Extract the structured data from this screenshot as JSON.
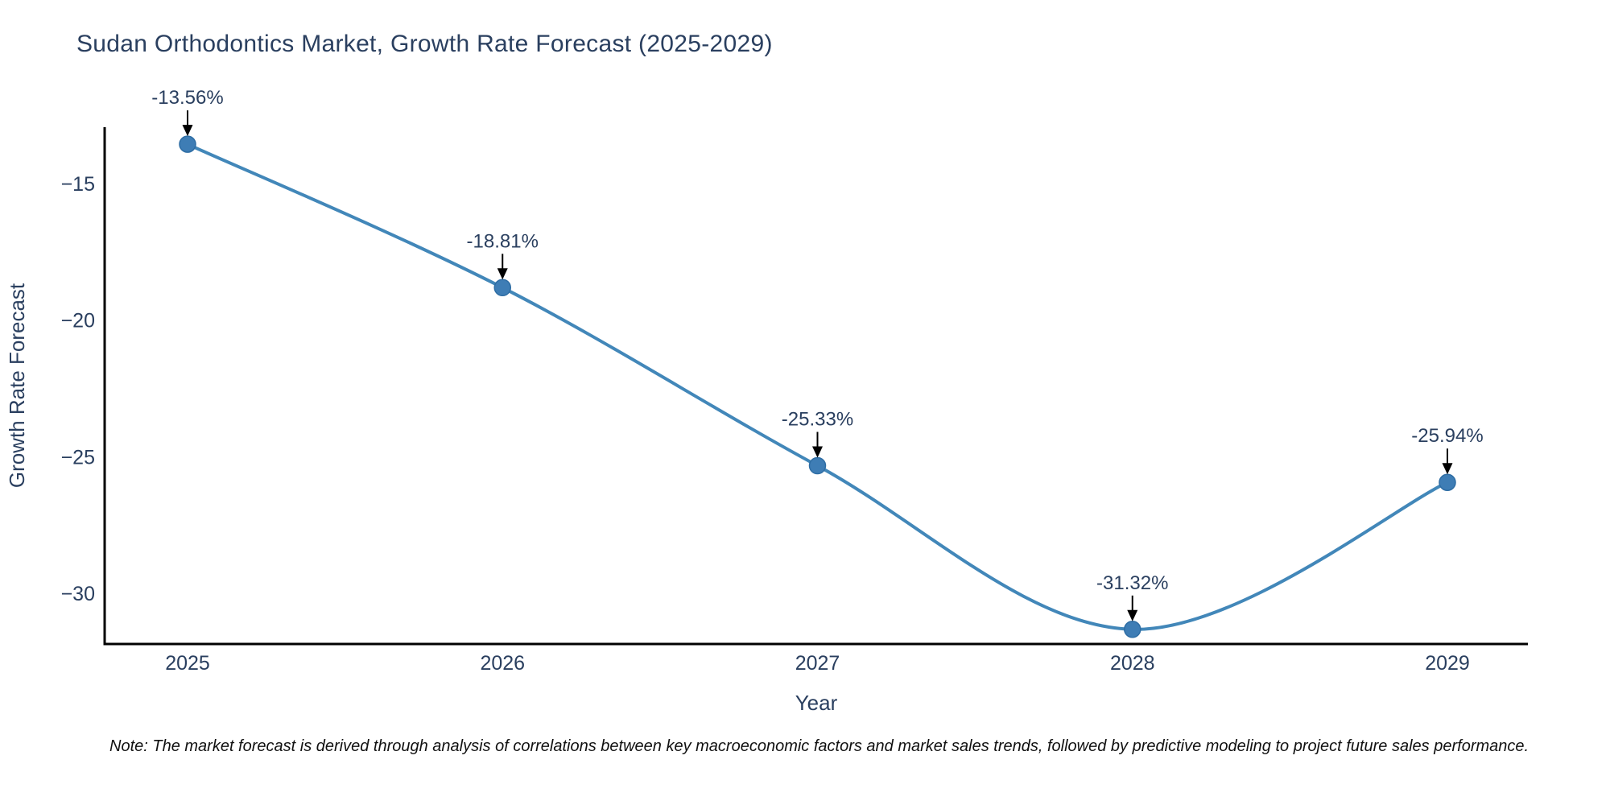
{
  "page": {
    "background_color": "#ffffff"
  },
  "chart_data": {
    "type": "line",
    "title": "Sudan Orthodontics Market, Growth Rate Forecast (2025-2029)",
    "xlabel": "Year",
    "ylabel": "Growth Rate Forecast",
    "x": [
      2025,
      2026,
      2027,
      2028,
      2029
    ],
    "y": [
      -13.56,
      -18.81,
      -25.33,
      -31.32,
      -25.94
    ],
    "series_name": "Growth Rate Forecast",
    "point_labels": [
      "-13.56%",
      "-18.81%",
      "-25.33%",
      "-31.32%",
      "-25.94%"
    ],
    "x_tick_labels": [
      "2025",
      "2026",
      "2027",
      "2028",
      "2029"
    ],
    "y_ticks": [
      -15,
      -20,
      -25,
      -30
    ],
    "y_tick_labels": [
      "−15",
      "−20",
      "−25",
      "−30"
    ],
    "ylim": [
      -32.1,
      -11.9
    ],
    "xlim": [
      2024.74,
      2029.26
    ],
    "line_shape": "spline",
    "grid": false,
    "legend_position": "none",
    "annotations_have_arrows": true,
    "line_color": "#4287b9",
    "marker_color": "#3e7db5",
    "marker_edge_color": "#2e6da4",
    "axis_color": "#000000",
    "text_color": "#2a3f5f",
    "arrow_color": "#000000"
  },
  "footnote": {
    "text": "Note: The market forecast is derived through analysis of correlations between key macroeconomic factors and market sales trends, followed by predictive modeling to project future sales performance."
  }
}
